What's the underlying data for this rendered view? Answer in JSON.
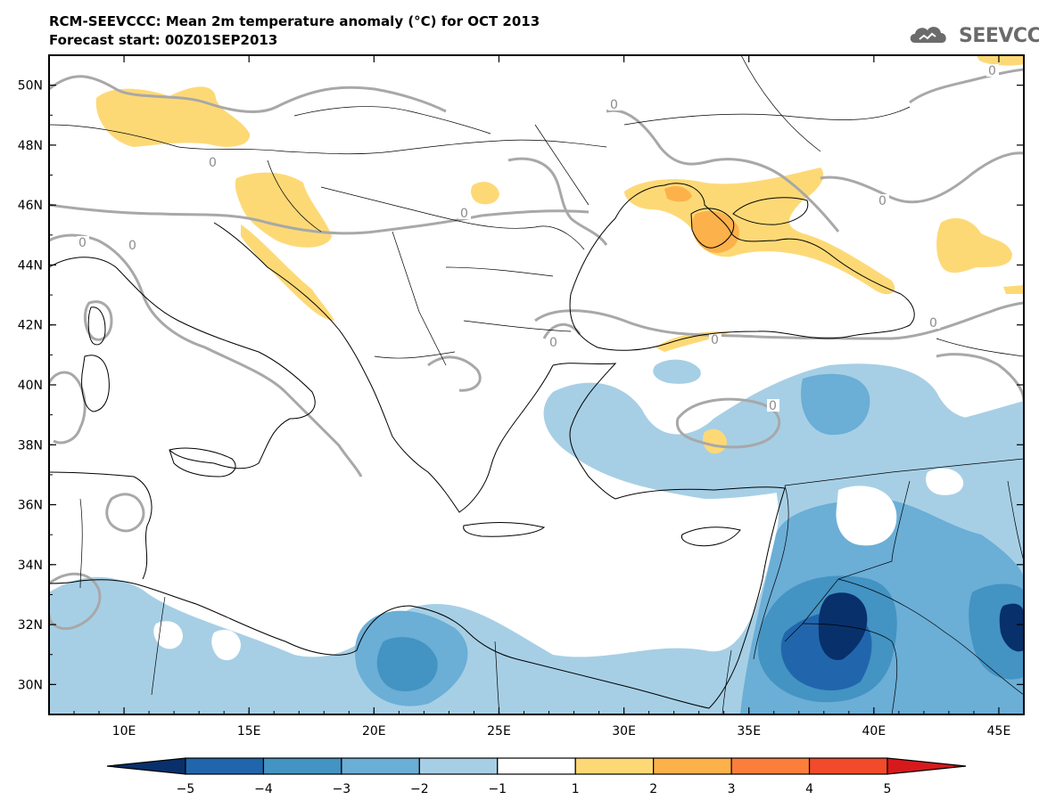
{
  "header": {
    "title": "RCM-SEEVCCC: Mean 2m temperature anomaly (°C) for OCT 2013",
    "subtitle": "Forecast start: 00Z01SEP2013",
    "logo_text": "SEEVCCC"
  },
  "map": {
    "lon_range": [
      7,
      46
    ],
    "lat_range": [
      29,
      51
    ],
    "lat_ticks": [
      "50N",
      "48N",
      "46N",
      "44N",
      "42N",
      "40N",
      "38N",
      "36N",
      "34N",
      "32N",
      "30N"
    ],
    "lon_ticks": [
      "10E",
      "15E",
      "20E",
      "25E",
      "30E",
      "35E",
      "40E",
      "45E"
    ],
    "contour_label": "0"
  },
  "colorbar": {
    "labels": [
      "−5",
      "−4",
      "−3",
      "−2",
      "−1",
      "1",
      "2",
      "3",
      "4",
      "5"
    ],
    "colors": [
      "#08306b",
      "#2166ac",
      "#4393c3",
      "#6baed6",
      "#a6cfe5",
      "#ffffff",
      "#fdd976",
      "#fdb14a",
      "#fd7e3a",
      "#f24a2a",
      "#d7191c"
    ]
  }
}
